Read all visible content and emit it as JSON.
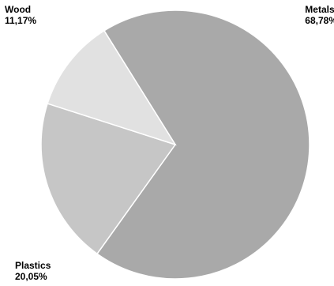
{
  "chart_data": {
    "type": "pie",
    "title": "",
    "slices": [
      {
        "label": "Metals",
        "value": 68.78,
        "value_label": "68,78%",
        "color": "#a9a9a9"
      },
      {
        "label": "Plastics",
        "value": 20.05,
        "value_label": "20,05%",
        "color": "#c6c6c6"
      },
      {
        "label": "Wood",
        "value": 11.17,
        "value_label": "11,17%",
        "color": "#e1e1e1"
      }
    ],
    "start_angle_deg": -122,
    "direction": "clockwise",
    "legend": "none"
  }
}
